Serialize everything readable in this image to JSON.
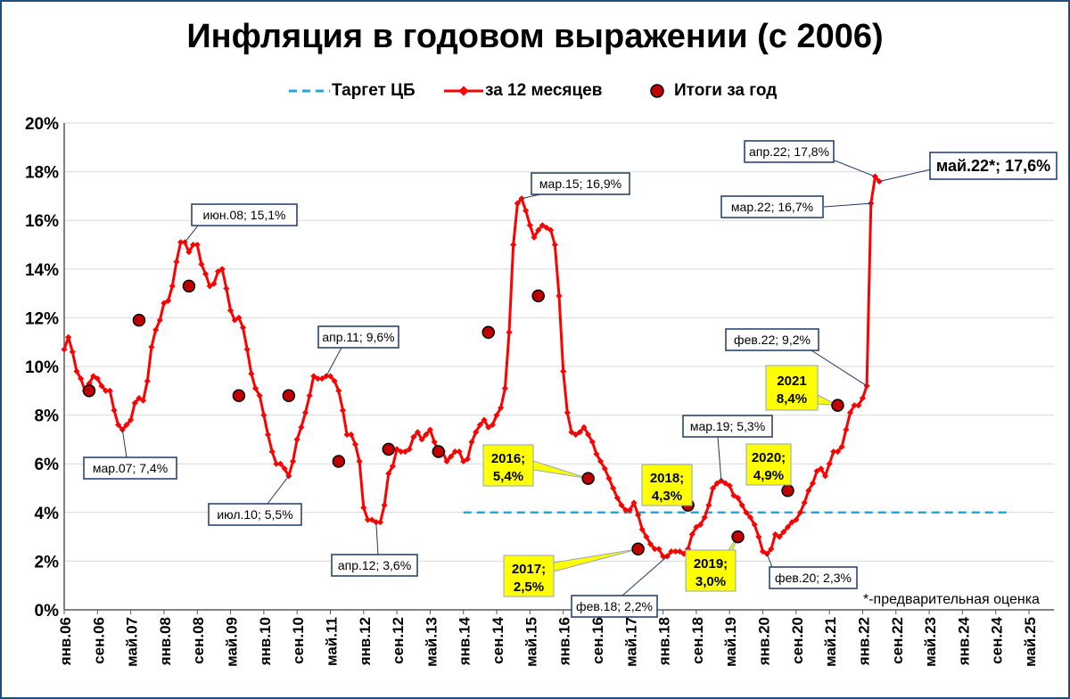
{
  "chart_data": {
    "type": "line",
    "title": "Инфляция в годовом выражении (с 2006)",
    "legend": [
      {
        "key": "target",
        "label": "Таргет ЦБ",
        "color": "#1fa9e1",
        "style": "dashed"
      },
      {
        "key": "yoy",
        "label": "за 12 месяцев",
        "color": "#ff0000",
        "style": "line-markers"
      },
      {
        "key": "annual",
        "label": "Итоги за год",
        "color": "#c00000",
        "style": "circle"
      }
    ],
    "legend_position": "top",
    "y_ticks": [
      "0%",
      "2%",
      "4%",
      "6%",
      "8%",
      "10%",
      "12%",
      "14%",
      "16%",
      "18%",
      "20%"
    ],
    "ylim": [
      0,
      20
    ],
    "x_ticks": [
      "янв.06",
      "сен.06",
      "май.07",
      "янв.08",
      "сен.08",
      "май.09",
      "янв.10",
      "сен.10",
      "май.11",
      "янв.12",
      "сен.12",
      "май.13",
      "янв.14",
      "сен.14",
      "май.15",
      "янв.16",
      "сен.16",
      "май.17",
      "янв.18",
      "сен.18",
      "май.19",
      "янв.20",
      "сен.20",
      "май.21",
      "янв.22",
      "сен.22",
      "май.23",
      "янв.24",
      "сен.24",
      "май.25"
    ],
    "x_start": "2006-01",
    "x_end": "2025-11",
    "target": {
      "value": 4.0,
      "from": "2014-01",
      "to": "2024-12"
    },
    "series_yoy": [
      [
        "2006-01",
        10.7
      ],
      [
        "2006-02",
        11.2
      ],
      [
        "2006-03",
        10.6
      ],
      [
        "2006-04",
        9.8
      ],
      [
        "2006-05",
        9.5
      ],
      [
        "2006-06",
        9.0
      ],
      [
        "2006-07",
        9.3
      ],
      [
        "2006-08",
        9.6
      ],
      [
        "2006-09",
        9.5
      ],
      [
        "2006-10",
        9.2
      ],
      [
        "2006-11",
        9.0
      ],
      [
        "2006-12",
        9.0
      ],
      [
        "2007-01",
        8.2
      ],
      [
        "2007-02",
        7.6
      ],
      [
        "2007-03",
        7.4
      ],
      [
        "2007-04",
        7.6
      ],
      [
        "2007-05",
        7.8
      ],
      [
        "2007-06",
        8.5
      ],
      [
        "2007-07",
        8.7
      ],
      [
        "2007-08",
        8.6
      ],
      [
        "2007-09",
        9.4
      ],
      [
        "2007-10",
        10.8
      ],
      [
        "2007-11",
        11.5
      ],
      [
        "2007-12",
        11.9
      ],
      [
        "2008-01",
        12.6
      ],
      [
        "2008-02",
        12.7
      ],
      [
        "2008-03",
        13.3
      ],
      [
        "2008-04",
        14.3
      ],
      [
        "2008-05",
        15.1
      ],
      [
        "2008-06",
        15.1
      ],
      [
        "2008-07",
        14.7
      ],
      [
        "2008-08",
        15.0
      ],
      [
        "2008-09",
        15.0
      ],
      [
        "2008-10",
        14.2
      ],
      [
        "2008-11",
        13.8
      ],
      [
        "2008-12",
        13.3
      ],
      [
        "2009-01",
        13.4
      ],
      [
        "2009-02",
        13.9
      ],
      [
        "2009-03",
        14.0
      ],
      [
        "2009-04",
        13.2
      ],
      [
        "2009-05",
        12.3
      ],
      [
        "2009-06",
        11.9
      ],
      [
        "2009-07",
        12.0
      ],
      [
        "2009-08",
        11.6
      ],
      [
        "2009-09",
        10.7
      ],
      [
        "2009-10",
        9.7
      ],
      [
        "2009-11",
        9.1
      ],
      [
        "2009-12",
        8.8
      ],
      [
        "2010-01",
        8.0
      ],
      [
        "2010-02",
        7.2
      ],
      [
        "2010-03",
        6.5
      ],
      [
        "2010-04",
        6.0
      ],
      [
        "2010-05",
        6.0
      ],
      [
        "2010-06",
        5.8
      ],
      [
        "2010-07",
        5.5
      ],
      [
        "2010-08",
        6.1
      ],
      [
        "2010-09",
        7.0
      ],
      [
        "2010-10",
        7.5
      ],
      [
        "2010-11",
        8.1
      ],
      [
        "2010-12",
        8.8
      ],
      [
        "2011-01",
        9.6
      ],
      [
        "2011-02",
        9.5
      ],
      [
        "2011-03",
        9.5
      ],
      [
        "2011-04",
        9.6
      ],
      [
        "2011-05",
        9.6
      ],
      [
        "2011-06",
        9.4
      ],
      [
        "2011-07",
        9.0
      ],
      [
        "2011-08",
        8.2
      ],
      [
        "2011-09",
        7.2
      ],
      [
        "2011-10",
        7.2
      ],
      [
        "2011-11",
        6.8
      ],
      [
        "2011-12",
        6.1
      ],
      [
        "2012-01",
        4.2
      ],
      [
        "2012-02",
        3.7
      ],
      [
        "2012-03",
        3.7
      ],
      [
        "2012-04",
        3.6
      ],
      [
        "2012-05",
        3.6
      ],
      [
        "2012-06",
        4.3
      ],
      [
        "2012-07",
        5.6
      ],
      [
        "2012-08",
        5.9
      ],
      [
        "2012-09",
        6.6
      ],
      [
        "2012-10",
        6.5
      ],
      [
        "2012-11",
        6.5
      ],
      [
        "2012-12",
        6.6
      ],
      [
        "2013-01",
        7.1
      ],
      [
        "2013-02",
        7.3
      ],
      [
        "2013-03",
        7.0
      ],
      [
        "2013-04",
        7.2
      ],
      [
        "2013-05",
        7.4
      ],
      [
        "2013-06",
        6.9
      ],
      [
        "2013-07",
        6.5
      ],
      [
        "2013-08",
        6.5
      ],
      [
        "2013-09",
        6.1
      ],
      [
        "2013-10",
        6.3
      ],
      [
        "2013-11",
        6.5
      ],
      [
        "2013-12",
        6.5
      ],
      [
        "2014-01",
        6.1
      ],
      [
        "2014-02",
        6.2
      ],
      [
        "2014-03",
        6.9
      ],
      [
        "2014-04",
        7.3
      ],
      [
        "2014-05",
        7.6
      ],
      [
        "2014-06",
        7.8
      ],
      [
        "2014-07",
        7.5
      ],
      [
        "2014-08",
        7.6
      ],
      [
        "2014-09",
        8.0
      ],
      [
        "2014-10",
        8.3
      ],
      [
        "2014-11",
        9.1
      ],
      [
        "2014-12",
        11.4
      ],
      [
        "2015-01",
        15.0
      ],
      [
        "2015-02",
        16.7
      ],
      [
        "2015-03",
        16.9
      ],
      [
        "2015-04",
        16.4
      ],
      [
        "2015-05",
        15.8
      ],
      [
        "2015-06",
        15.3
      ],
      [
        "2015-07",
        15.6
      ],
      [
        "2015-08",
        15.8
      ],
      [
        "2015-09",
        15.7
      ],
      [
        "2015-10",
        15.6
      ],
      [
        "2015-11",
        15.0
      ],
      [
        "2015-12",
        12.9
      ],
      [
        "2016-01",
        9.8
      ],
      [
        "2016-02",
        8.1
      ],
      [
        "2016-03",
        7.3
      ],
      [
        "2016-04",
        7.2
      ],
      [
        "2016-05",
        7.3
      ],
      [
        "2016-06",
        7.5
      ],
      [
        "2016-07",
        7.2
      ],
      [
        "2016-08",
        6.9
      ],
      [
        "2016-09",
        6.4
      ],
      [
        "2016-10",
        6.1
      ],
      [
        "2016-11",
        5.8
      ],
      [
        "2016-12",
        5.4
      ],
      [
        "2017-01",
        5.0
      ],
      [
        "2017-02",
        4.6
      ],
      [
        "2017-03",
        4.3
      ],
      [
        "2017-04",
        4.1
      ],
      [
        "2017-05",
        4.1
      ],
      [
        "2017-06",
        4.4
      ],
      [
        "2017-07",
        3.9
      ],
      [
        "2017-08",
        3.3
      ],
      [
        "2017-09",
        3.0
      ],
      [
        "2017-10",
        2.7
      ],
      [
        "2017-11",
        2.5
      ],
      [
        "2017-12",
        2.5
      ],
      [
        "2018-01",
        2.2
      ],
      [
        "2018-02",
        2.2
      ],
      [
        "2018-03",
        2.4
      ],
      [
        "2018-04",
        2.4
      ],
      [
        "2018-05",
        2.4
      ],
      [
        "2018-06",
        2.3
      ],
      [
        "2018-07",
        2.5
      ],
      [
        "2018-08",
        3.1
      ],
      [
        "2018-09",
        3.4
      ],
      [
        "2018-10",
        3.5
      ],
      [
        "2018-11",
        3.8
      ],
      [
        "2018-12",
        4.3
      ],
      [
        "2019-01",
        5.0
      ],
      [
        "2019-02",
        5.2
      ],
      [
        "2019-03",
        5.3
      ],
      [
        "2019-04",
        5.2
      ],
      [
        "2019-05",
        5.1
      ],
      [
        "2019-06",
        4.7
      ],
      [
        "2019-07",
        4.6
      ],
      [
        "2019-08",
        4.3
      ],
      [
        "2019-09",
        4.0
      ],
      [
        "2019-10",
        3.8
      ],
      [
        "2019-11",
        3.5
      ],
      [
        "2019-12",
        3.0
      ],
      [
        "2020-01",
        2.4
      ],
      [
        "2020-02",
        2.3
      ],
      [
        "2020-03",
        2.5
      ],
      [
        "2020-04",
        3.1
      ],
      [
        "2020-05",
        3.0
      ],
      [
        "2020-06",
        3.2
      ],
      [
        "2020-07",
        3.4
      ],
      [
        "2020-08",
        3.6
      ],
      [
        "2020-09",
        3.7
      ],
      [
        "2020-10",
        4.0
      ],
      [
        "2020-11",
        4.4
      ],
      [
        "2020-12",
        4.9
      ],
      [
        "2021-01",
        5.2
      ],
      [
        "2021-02",
        5.7
      ],
      [
        "2021-03",
        5.8
      ],
      [
        "2021-04",
        5.5
      ],
      [
        "2021-05",
        6.0
      ],
      [
        "2021-06",
        6.5
      ],
      [
        "2021-07",
        6.5
      ],
      [
        "2021-08",
        6.7
      ],
      [
        "2021-09",
        7.4
      ],
      [
        "2021-10",
        8.1
      ],
      [
        "2021-11",
        8.4
      ],
      [
        "2021-12",
        8.4
      ],
      [
        "2022-01",
        8.7
      ],
      [
        "2022-02",
        9.2
      ],
      [
        "2022-03",
        16.7
      ],
      [
        "2022-04",
        17.8
      ],
      [
        "2022-05",
        17.6
      ]
    ],
    "series_annual": [
      [
        "2006-07",
        9.0
      ],
      [
        "2007-07",
        11.9
      ],
      [
        "2008-07",
        13.3
      ],
      [
        "2009-07",
        8.8
      ],
      [
        "2010-07",
        8.8
      ],
      [
        "2011-07",
        6.1
      ],
      [
        "2012-07",
        6.6
      ],
      [
        "2013-07",
        6.5
      ],
      [
        "2014-07",
        11.4
      ],
      [
        "2015-07",
        12.9
      ],
      [
        "2016-07",
        5.4
      ],
      [
        "2017-07",
        2.5
      ],
      [
        "2018-07",
        4.3
      ],
      [
        "2019-07",
        3.0
      ],
      [
        "2020-07",
        4.9
      ],
      [
        "2021-07",
        8.4
      ]
    ],
    "annotations_white": [
      {
        "text": "мар.07; 7,4%",
        "at": [
          "2007-03",
          7.4
        ]
      },
      {
        "text": "июн.08; 15,1%",
        "at": [
          "2008-06",
          15.1
        ]
      },
      {
        "text": "июл.10; 5,5%",
        "at": [
          "2010-07",
          5.5
        ]
      },
      {
        "text": "апр.11; 9,6%",
        "at": [
          "2011-04",
          9.6
        ]
      },
      {
        "text": "апр.12; 3,6%",
        "at": [
          "2012-04",
          3.6
        ]
      },
      {
        "text": "мар.15; 16,9%",
        "at": [
          "2015-03",
          16.9
        ]
      },
      {
        "text": "фев.18; 2,2%",
        "at": [
          "2018-02",
          2.2
        ]
      },
      {
        "text": "мар.19; 5,3%",
        "at": [
          "2019-03",
          5.3
        ]
      },
      {
        "text": "фев.20; 2,3%",
        "at": [
          "2020-02",
          2.3
        ]
      },
      {
        "text": "фев.22; 9,2%",
        "at": [
          "2022-02",
          9.2
        ]
      },
      {
        "text": "мар.22; 16,7%",
        "at": [
          "2022-03",
          16.7
        ]
      },
      {
        "text": "апр.22; 17,8%",
        "at": [
          "2022-04",
          17.8
        ]
      },
      {
        "text": "май.22*; 17,6%",
        "at": [
          "2022-05",
          17.6
        ]
      }
    ],
    "annotations_yellow": [
      {
        "line1": "2016;",
        "line2": "5,4%",
        "at": [
          "2016-07",
          5.4
        ]
      },
      {
        "line1": "2017;",
        "line2": "2,5%",
        "at": [
          "2017-07",
          2.5
        ]
      },
      {
        "line1": "2018;",
        "line2": "4,3%",
        "at": [
          "2018-07",
          4.3
        ]
      },
      {
        "line1": "2019;",
        "line2": "3,0%",
        "at": [
          "2019-07",
          3.0
        ]
      },
      {
        "line1": "2020;",
        "line2": "4,9%",
        "at": [
          "2020-07",
          4.9
        ]
      },
      {
        "line1": "2021",
        "line2": "8,4%",
        "at": [
          "2021-07",
          8.4
        ]
      }
    ],
    "footnote": "*-предварительная оценка",
    "colors": {
      "line": "#ff0000",
      "marker_fill": "#c00000",
      "target": "#1fa9e1",
      "callout_border": "#1f3864",
      "yellow": "#ffff00",
      "frame": "#1f4e79"
    }
  }
}
